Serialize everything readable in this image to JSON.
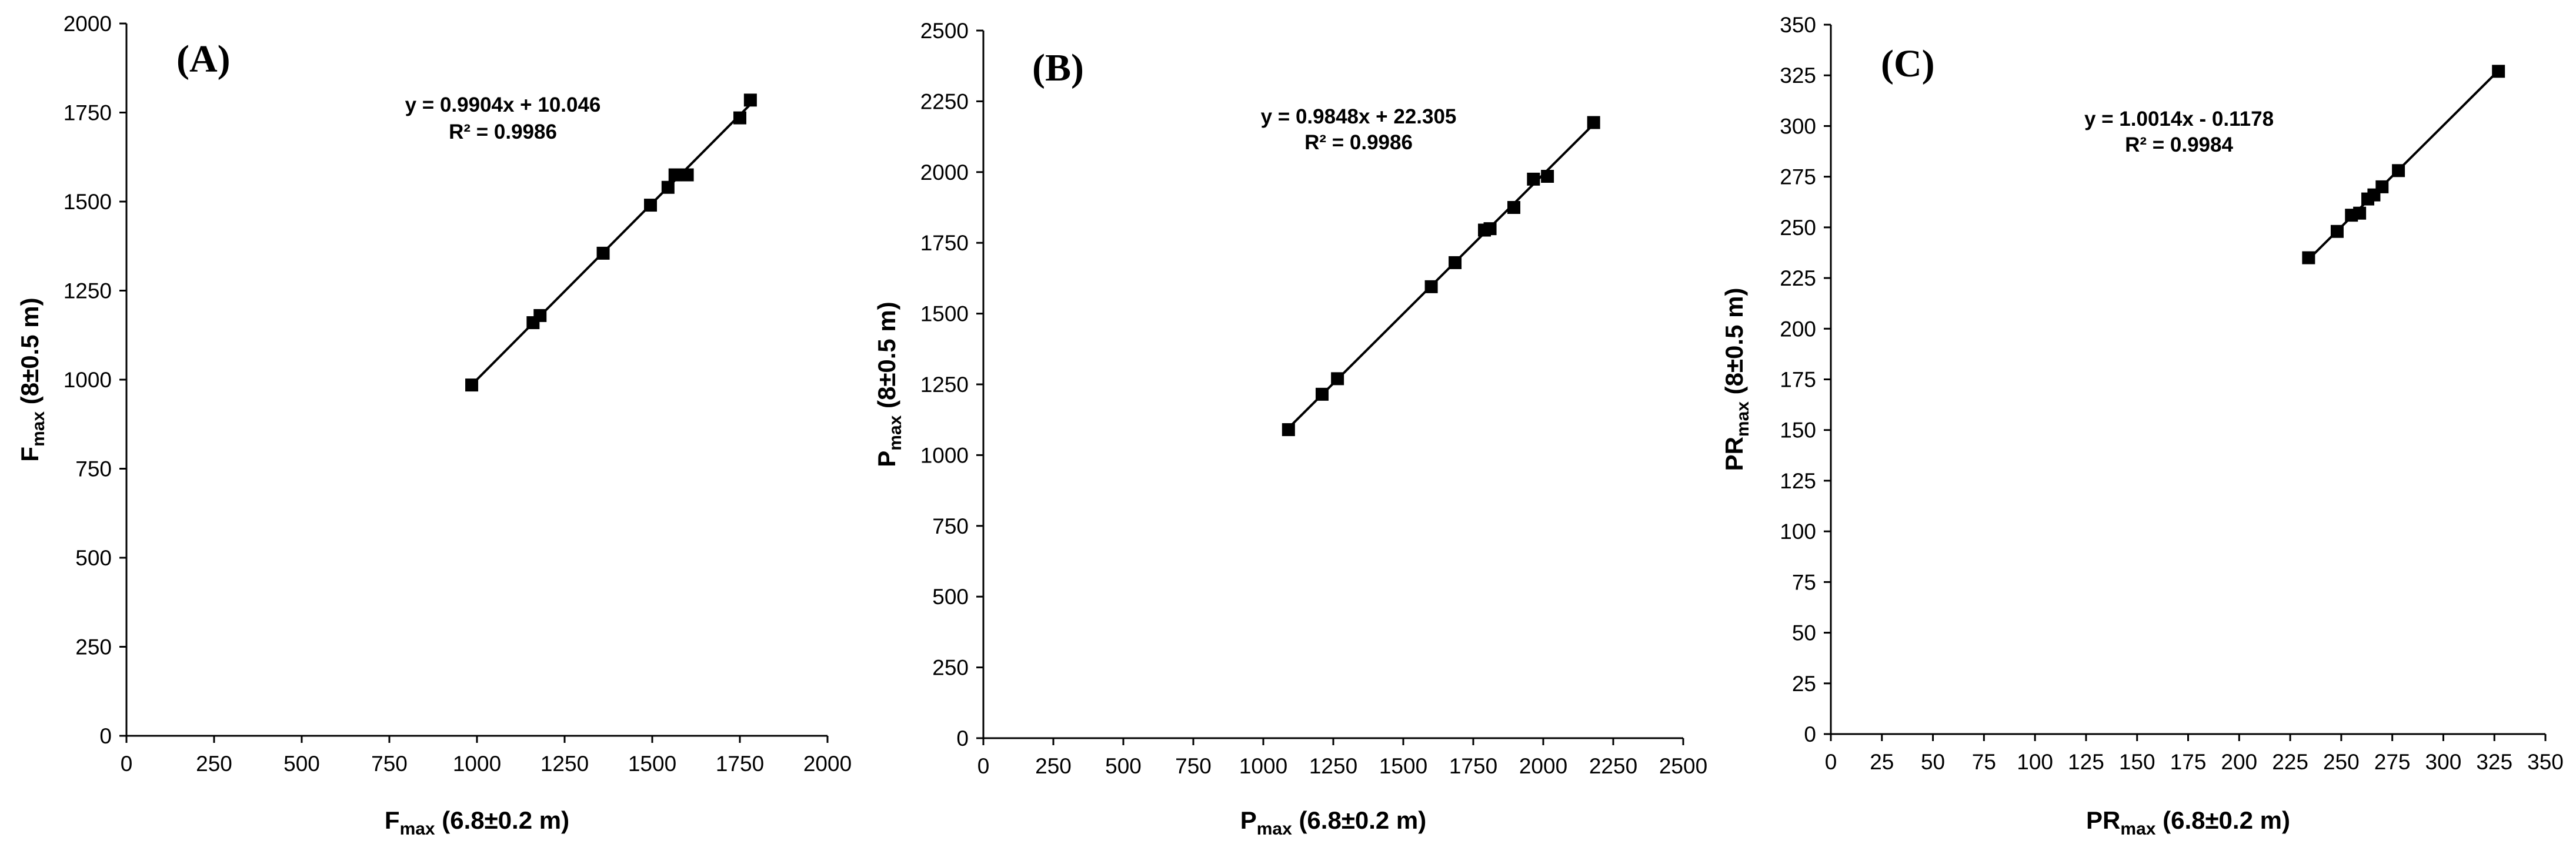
{
  "chart_data": [
    {
      "type": "scatter",
      "panel_label": "(A)",
      "xlabel": {
        "main": "F",
        "sub": "max",
        "rest": " (6.8±0.2 m)"
      },
      "ylabel": {
        "main": "F",
        "sub": "max",
        "rest": " (8±0.5 m)"
      },
      "xlim": [
        0,
        2000
      ],
      "ylim": [
        0,
        2000
      ],
      "xticks": [
        0,
        250,
        500,
        750,
        1000,
        1250,
        1500,
        1750,
        2000
      ],
      "yticks": [
        0,
        250,
        500,
        750,
        1000,
        1250,
        1500,
        1750,
        2000
      ],
      "equation": "y = 0.9904x + 10.046",
      "r2": "R² = 0.9986",
      "trendline": {
        "slope": 0.9904,
        "intercept": 10.046
      },
      "points": [
        {
          "x": 985,
          "y": 985
        },
        {
          "x": 1160,
          "y": 1160
        },
        {
          "x": 1180,
          "y": 1180
        },
        {
          "x": 1360,
          "y": 1355
        },
        {
          "x": 1495,
          "y": 1490
        },
        {
          "x": 1545,
          "y": 1540
        },
        {
          "x": 1565,
          "y": 1575
        },
        {
          "x": 1600,
          "y": 1575
        },
        {
          "x": 1750,
          "y": 1735
        },
        {
          "x": 1780,
          "y": 1785
        }
      ],
      "grid": false
    },
    {
      "type": "scatter",
      "panel_label": "(B)",
      "xlabel": {
        "main": "P",
        "sub": "max",
        "rest": " (6.8±0.2 m)"
      },
      "ylabel": {
        "main": "P",
        "sub": "max",
        "rest": " (8±0.5 m)"
      },
      "xlim": [
        0,
        2500
      ],
      "ylim": [
        0,
        2500
      ],
      "xticks": [
        0,
        250,
        500,
        750,
        1000,
        1250,
        1500,
        1750,
        2000,
        2250,
        2500
      ],
      "yticks": [
        0,
        250,
        500,
        750,
        1000,
        1250,
        1500,
        1750,
        2000,
        2250,
        2500
      ],
      "equation": "y = 0.9848x + 22.305",
      "r2": "R² = 0.9986",
      "trendline": {
        "slope": 0.9848,
        "intercept": 22.305
      },
      "points": [
        {
          "x": 1090,
          "y": 1090
        },
        {
          "x": 1210,
          "y": 1215
        },
        {
          "x": 1265,
          "y": 1270
        },
        {
          "x": 1600,
          "y": 1595
        },
        {
          "x": 1685,
          "y": 1680
        },
        {
          "x": 1790,
          "y": 1795
        },
        {
          "x": 1810,
          "y": 1800
        },
        {
          "x": 1895,
          "y": 1875
        },
        {
          "x": 1965,
          "y": 1975
        },
        {
          "x": 2015,
          "y": 1985
        },
        {
          "x": 2180,
          "y": 2175
        }
      ],
      "grid": false
    },
    {
      "type": "scatter",
      "panel_label": "(C)",
      "xlabel": {
        "main": "PR",
        "sub": "max",
        "rest": " (6.8±0.2 m)"
      },
      "ylabel": {
        "main": "PR",
        "sub": "max",
        "rest": " (8±0.5 m)"
      },
      "xlim": [
        0,
        350
      ],
      "ylim": [
        0,
        350
      ],
      "xticks": [
        0,
        25,
        50,
        75,
        100,
        125,
        150,
        175,
        200,
        225,
        250,
        275,
        300,
        325,
        350
      ],
      "yticks": [
        0,
        25,
        50,
        75,
        100,
        125,
        150,
        175,
        200,
        225,
        250,
        275,
        300,
        325,
        350
      ],
      "equation": "y = 1.0014x - 0.1178",
      "r2": "R² = 0.9984",
      "trendline": {
        "slope": 1.0014,
        "intercept": -0.1178
      },
      "points": [
        {
          "x": 234,
          "y": 235
        },
        {
          "x": 248,
          "y": 248
        },
        {
          "x": 255,
          "y": 256
        },
        {
          "x": 259,
          "y": 257
        },
        {
          "x": 263,
          "y": 264
        },
        {
          "x": 266,
          "y": 266
        },
        {
          "x": 270,
          "y": 270
        },
        {
          "x": 278,
          "y": 278
        },
        {
          "x": 327,
          "y": 327
        }
      ],
      "grid": false
    }
  ]
}
